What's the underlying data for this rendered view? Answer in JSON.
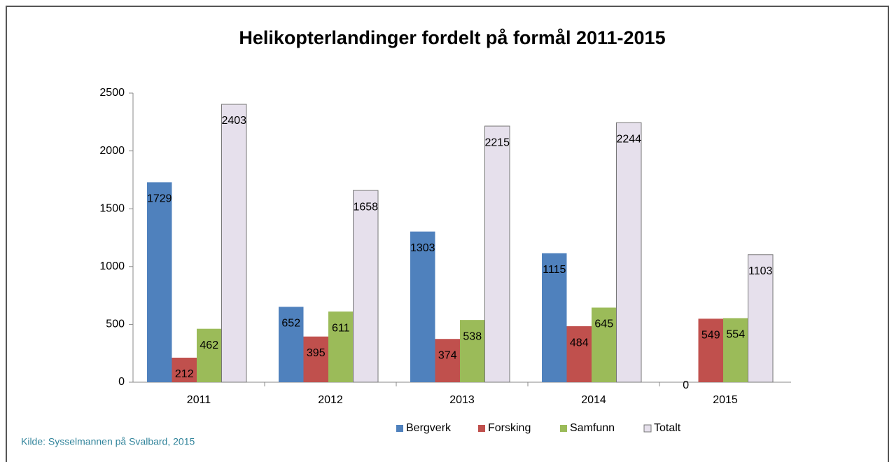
{
  "chart_data": {
    "type": "bar",
    "title": "Helikopterlandinger fordelt på formål 2011-2015",
    "categories": [
      "2011",
      "2012",
      "2013",
      "2014",
      "2015"
    ],
    "series": [
      {
        "name": "Bergverk",
        "color": "#4f81bd",
        "values": [
          1729,
          652,
          1303,
          1115,
          0
        ]
      },
      {
        "name": "Forsking",
        "color": "#c0504d",
        "values": [
          212,
          395,
          374,
          484,
          549
        ]
      },
      {
        "name": "Samfunn",
        "color": "#9bbb59",
        "values": [
          462,
          611,
          538,
          645,
          554
        ]
      },
      {
        "name": "Totalt",
        "color": "#e6e0ec",
        "values": [
          2403,
          1658,
          2215,
          2244,
          1103
        ]
      }
    ],
    "ylim": [
      0,
      2500
    ],
    "yticks": [
      0,
      500,
      1000,
      1500,
      2000,
      2500
    ],
    "legend": "bottom",
    "source": "Kilde: Sysselmannen på Svalbard, 2015"
  }
}
